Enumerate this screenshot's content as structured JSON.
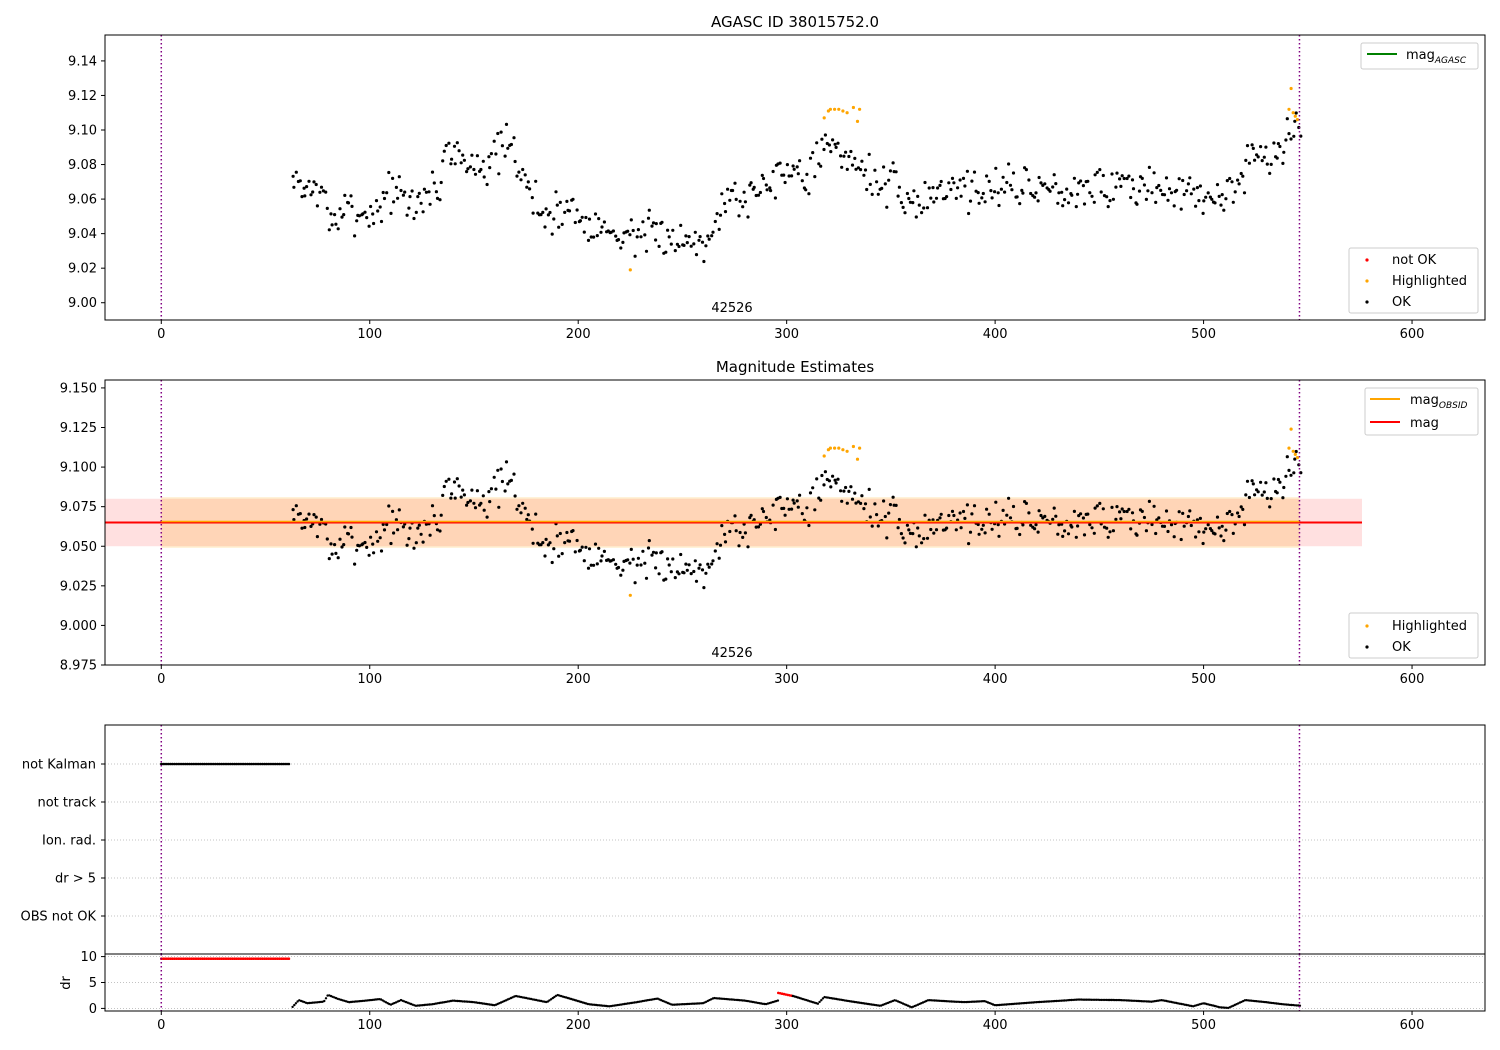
{
  "chart_data": [
    {
      "type": "scatter",
      "title": "AGASC ID 38015752.0",
      "xlabel": "",
      "ylabel": "",
      "xlim": [
        -27,
        635
      ],
      "ylim": [
        8.99,
        9.155
      ],
      "x_ticks": [
        0,
        100,
        200,
        300,
        400,
        500,
        600
      ],
      "y_ticks": [
        9.0,
        9.02,
        9.04,
        9.06,
        9.08,
        9.1,
        9.12,
        9.14
      ],
      "y_tick_decimals": 2,
      "grid": false,
      "obsid_label": "42526",
      "obsid_label_x": 274,
      "vlines": [
        0,
        546
      ],
      "legend_lines": {
        "placement": "top-right",
        "entries": [
          {
            "label": "mag",
            "sub": "AGASC",
            "color": "#008000"
          }
        ]
      },
      "legend_points": {
        "placement": "lower-right",
        "entries": [
          {
            "label": "not OK",
            "color": "#ff0000"
          },
          {
            "label": "Highlighted",
            "color": "#ffa500"
          },
          {
            "label": "OK",
            "color": "#000000"
          }
        ]
      },
      "series": [
        {
          "name": "OK",
          "color": "#000000",
          "x_start": 63,
          "x_end": 547,
          "profile": [
            [
              63,
              9.07
            ],
            [
              75,
              9.065
            ],
            [
              83,
              9.048
            ],
            [
              92,
              9.055
            ],
            [
              100,
              9.05
            ],
            [
              110,
              9.066
            ],
            [
              118,
              9.056
            ],
            [
              125,
              9.06
            ],
            [
              133,
              9.068
            ],
            [
              138,
              9.093
            ],
            [
              145,
              9.078
            ],
            [
              160,
              9.085
            ],
            [
              168,
              9.088
            ],
            [
              175,
              9.07
            ],
            [
              183,
              9.05
            ],
            [
              195,
              9.055
            ],
            [
              205,
              9.048
            ],
            [
              215,
              9.04
            ],
            [
              225,
              9.04
            ],
            [
              240,
              9.038
            ],
            [
              255,
              9.036
            ],
            [
              262,
              9.04
            ],
            [
              270,
              9.06
            ],
            [
              280,
              9.06
            ],
            [
              290,
              9.07
            ],
            [
              300,
              9.08
            ],
            [
              308,
              9.073
            ],
            [
              318,
              9.09
            ],
            [
              325,
              9.085
            ],
            [
              333,
              9.085
            ],
            [
              340,
              9.072
            ],
            [
              352,
              9.065
            ],
            [
              360,
              9.055
            ],
            [
              370,
              9.065
            ],
            [
              380,
              9.068
            ],
            [
              395,
              9.066
            ],
            [
              410,
              9.068
            ],
            [
              430,
              9.066
            ],
            [
              450,
              9.068
            ],
            [
              470,
              9.066
            ],
            [
              490,
              9.065
            ],
            [
              505,
              9.058
            ],
            [
              515,
              9.07
            ],
            [
              525,
              9.085
            ],
            [
              535,
              9.08
            ],
            [
              541,
              9.1
            ],
            [
              547,
              9.1
            ]
          ],
          "noise": 0.006,
          "density": 1.15
        },
        {
          "name": "Highlighted",
          "color": "#ffa500",
          "points": [
            [
              225,
              9.019
            ],
            [
              318,
              9.107
            ],
            [
              320,
              9.111
            ],
            [
              321,
              9.112
            ],
            [
              323,
              9.112
            ],
            [
              325,
              9.112
            ],
            [
              327,
              9.111
            ],
            [
              329,
              9.11
            ],
            [
              332,
              9.113
            ],
            [
              334,
              9.105
            ],
            [
              335,
              9.112
            ],
            [
              541,
              9.112
            ],
            [
              542,
              9.124
            ],
            [
              543,
              9.11
            ],
            [
              544,
              9.108
            ],
            [
              545,
              9.106
            ]
          ]
        }
      ]
    },
    {
      "type": "scatter",
      "title": "Magnitude Estimates",
      "xlabel": "",
      "ylabel": "",
      "xlim": [
        -27,
        635
      ],
      "ylim": [
        8.975,
        9.155
      ],
      "x_ticks": [
        0,
        100,
        200,
        300,
        400,
        500,
        600
      ],
      "y_ticks": [
        8.975,
        9.0,
        9.025,
        9.05,
        9.075,
        9.1,
        9.125,
        9.15
      ],
      "y_tick_decimals": 3,
      "grid": false,
      "obsid_label": "42526",
      "obsid_label_x": 274,
      "vlines": [
        0,
        546
      ],
      "mag": 9.065,
      "mag_band": [
        9.05,
        9.08
      ],
      "mag_band_xrange": [
        -27,
        576
      ],
      "obsid_mag": 9.065,
      "obsid_band": [
        9.049,
        9.081
      ],
      "obsid_band_xrange": [
        0,
        546
      ],
      "legend_lines": {
        "placement": "top-right",
        "entries": [
          {
            "label": "mag",
            "sub": "OBSID",
            "color": "#ffa500"
          },
          {
            "label": "mag",
            "sub": "",
            "color": "#ff0000"
          }
        ]
      },
      "legend_points": {
        "placement": "lower-right",
        "entries": [
          {
            "label": "Highlighted",
            "color": "#ffa500"
          },
          {
            "label": "OK",
            "color": "#000000"
          }
        ]
      },
      "series": [
        {
          "name": "OK",
          "color": "#000000",
          "same_as_previous": true
        },
        {
          "name": "Highlighted",
          "color": "#ffa500",
          "same_as_previous": true
        }
      ]
    },
    {
      "type": "scatter",
      "title": "",
      "xlabel": "",
      "ylabel": "",
      "xlim": [
        -27,
        635
      ],
      "categories": [
        "not Kalman",
        "not track",
        "Ion. rad.",
        "dr > 5",
        "OBS not OK"
      ],
      "grid": true,
      "vlines": [
        0,
        546
      ],
      "flags": [
        {
          "category": "not Kalman",
          "x_range": [
            0,
            62
          ],
          "color": "#000000"
        }
      ]
    },
    {
      "type": "scatter",
      "title": "",
      "xlabel": "",
      "ylabel": "dr",
      "xlim": [
        -27,
        635
      ],
      "ylim": [
        -0.5,
        10.5
      ],
      "y_ticks": [
        0,
        5,
        10
      ],
      "grid": true,
      "vlines": [
        0,
        546
      ],
      "series": [
        {
          "name": "dr > 5",
          "color": "#ff0000",
          "x_range": [
            0,
            62
          ],
          "value": 9.6
        },
        {
          "name": "dr > 5",
          "color": "#ff0000",
          "x_range": [
            296,
            303
          ],
          "start": 3.0,
          "end": 2.4
        },
        {
          "name": "OK",
          "color": "#000000",
          "profile": [
            [
              63,
              0.3
            ],
            [
              66,
              1.6
            ],
            [
              70,
              1.0
            ],
            [
              78,
              1.3
            ],
            [
              80,
              2.6
            ],
            [
              85,
              1.8
            ],
            [
              90,
              1.2
            ],
            [
              98,
              1.5
            ],
            [
              105,
              1.8
            ],
            [
              110,
              0.7
            ],
            [
              115,
              1.6
            ],
            [
              122,
              0.5
            ],
            [
              130,
              0.8
            ],
            [
              140,
              1.5
            ],
            [
              150,
              1.2
            ],
            [
              160,
              0.6
            ],
            [
              170,
              2.4
            ],
            [
              185,
              1.2
            ],
            [
              190,
              2.6
            ],
            [
              205,
              0.8
            ],
            [
              215,
              0.4
            ],
            [
              228,
              1.2
            ],
            [
              238,
              1.9
            ],
            [
              245,
              0.7
            ],
            [
              260,
              1.0
            ],
            [
              265,
              2.0
            ],
            [
              280,
              1.5
            ],
            [
              290,
              0.8
            ],
            [
              303,
              2.4
            ],
            [
              315,
              0.9
            ],
            [
              318,
              2.2
            ],
            [
              330,
              1.4
            ],
            [
              345,
              0.5
            ],
            [
              352,
              1.6
            ],
            [
              360,
              0.2
            ],
            [
              368,
              1.6
            ],
            [
              385,
              1.2
            ],
            [
              395,
              1.4
            ],
            [
              400,
              0.6
            ],
            [
              420,
              1.2
            ],
            [
              440,
              1.7
            ],
            [
              460,
              1.6
            ],
            [
              475,
              1.3
            ],
            [
              480,
              1.6
            ],
            [
              495,
              0.4
            ],
            [
              500,
              1.0
            ],
            [
              508,
              0.2
            ],
            [
              512,
              0.1
            ],
            [
              520,
              1.6
            ],
            [
              530,
              1.2
            ],
            [
              538,
              0.8
            ],
            [
              547,
              0.5
            ]
          ]
        }
      ]
    }
  ]
}
